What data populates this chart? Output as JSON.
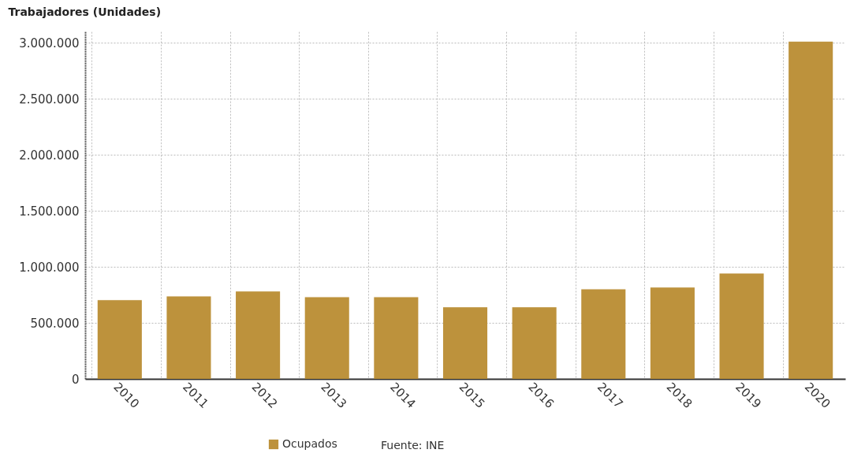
{
  "chart_data": {
    "type": "bar",
    "ylabel": "Trabajadores (Unidades)",
    "categories": [
      "2010",
      "2011",
      "2012",
      "2013",
      "2014",
      "2015",
      "2016",
      "2017",
      "2018",
      "2019",
      "2020"
    ],
    "series": [
      {
        "name": "Ocupados",
        "color": "#bd923c",
        "values": [
          702000,
          737000,
          780000,
          730000,
          730000,
          640000,
          640000,
          800000,
          815000,
          940000,
          3010000
        ]
      }
    ],
    "ylim": [
      0,
      3100000
    ],
    "yticks": [
      {
        "value": 0,
        "label": "0"
      },
      {
        "value": 500000,
        "label": "500.000"
      },
      {
        "value": 1000000,
        "label": "1.000.000"
      },
      {
        "value": 1500000,
        "label": "1.500.000"
      },
      {
        "value": 2000000,
        "label": "2.000.000"
      },
      {
        "value": 2500000,
        "label": "2.500.000"
      },
      {
        "value": 3000000,
        "label": "3.000.000"
      }
    ],
    "grid": true,
    "legend": "bottom",
    "annotations": [
      "Fuente: INE"
    ]
  }
}
